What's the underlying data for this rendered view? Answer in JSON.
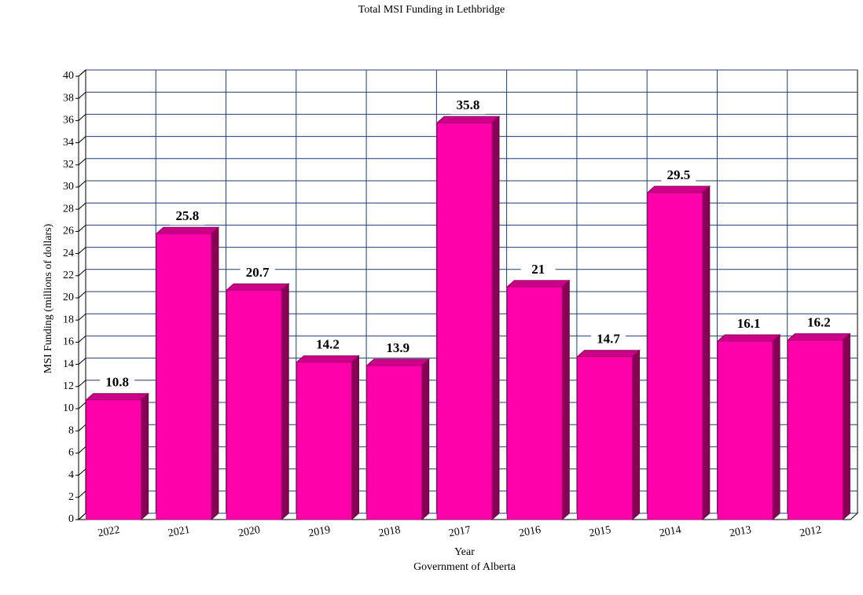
{
  "chart_data": {
    "type": "bar",
    "title": "Total MSI Funding in Lethbridge",
    "x_label": "Year",
    "caption": "Government of Alberta",
    "y_label": "MSI Funding (millions of dollars)",
    "categories": [
      "2022",
      "2021",
      "2020",
      "2019",
      "2018",
      "2017",
      "2016",
      "2015",
      "2014",
      "2013",
      "2012"
    ],
    "values": [
      10.8,
      25.8,
      20.7,
      14.2,
      13.9,
      35.8,
      21,
      14.7,
      29.5,
      16.1,
      16.2
    ],
    "color": "#ff00aa",
    "ylim": [
      0,
      40
    ],
    "yticks": [
      0,
      2,
      4,
      6,
      8,
      10,
      12,
      14,
      16,
      18,
      20,
      22,
      24,
      26,
      28,
      30,
      32,
      34,
      36,
      38,
      40
    ],
    "grid": true
  }
}
